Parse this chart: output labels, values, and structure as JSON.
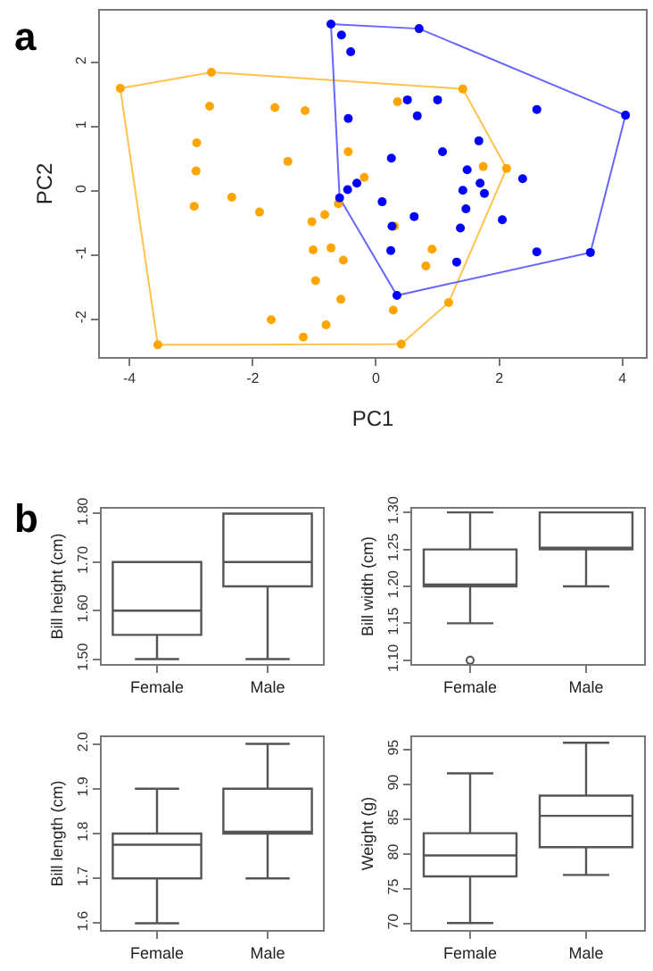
{
  "chart_data": [
    {
      "type": "scatter",
      "xlabel": "PC1",
      "ylabel": "PC2",
      "annotations": [
        "a"
      ],
      "marker": "circle",
      "grid": false,
      "xlim": [
        -4.48,
        4.38
      ],
      "xticks": [
        -4,
        -2,
        0,
        2,
        4
      ],
      "ylim": [
        -2.59,
        2.81
      ],
      "yticks": [
        -2,
        -1,
        0,
        1,
        2
      ],
      "series": [
        {
          "type": "line",
          "marker": "none",
          "line_style": "solid",
          "color": "#ffc34d",
          "x": [
            -4.15,
            -2.67,
            1.41,
            2.12
          ],
          "values": [
            1.6,
            1.85,
            1.59,
            0.35
          ]
        },
        {
          "type": "line",
          "marker": "none",
          "line_style": "solid",
          "color": "#ffc34d",
          "x": [
            -4.15,
            -3.54,
            0.41,
            1.18,
            2.12
          ],
          "values": [
            1.6,
            -2.4,
            -2.39,
            -1.74,
            0.35
          ]
        },
        {
          "type": "line",
          "marker": "none",
          "line_style": "solid",
          "color": "#6666ff",
          "x": [
            -0.73,
            0.7,
            4.05
          ],
          "values": [
            2.6,
            2.53,
            1.18
          ]
        },
        {
          "type": "line",
          "marker": "none",
          "line_style": "solid",
          "color": "#6666ff",
          "x": [
            -0.73,
            -0.59,
            0.34,
            3.48,
            4.05
          ],
          "values": [
            2.6,
            -0.11,
            -1.63,
            -0.96,
            1.18
          ]
        },
        {
          "color": "#ffa500",
          "x": [
            -4.15,
            -2.67,
            -2.7,
            -1.64,
            -1.15,
            -2.91,
            -2.92,
            -1.43,
            -2.34,
            -2.95,
            -1.89,
            -1.04,
            -0.83,
            -1.02,
            -0.98,
            -1.7,
            -1.18,
            -0.81,
            -3.54,
            1.41,
            0.35,
            -0.45,
            -0.19,
            1.74,
            2.12,
            -0.61,
            0.3,
            -0.73,
            -0.53,
            0.91,
            0.81,
            -0.57,
            0.28,
            1.18,
            0.41
          ],
          "values": [
            1.6,
            1.85,
            1.32,
            1.3,
            1.25,
            0.75,
            0.31,
            0.46,
            -0.1,
            -0.24,
            -0.33,
            -0.48,
            -0.37,
            -0.92,
            -1.4,
            -2.01,
            -2.28,
            -2.09,
            -2.4,
            1.59,
            1.39,
            0.61,
            0.21,
            0.38,
            0.35,
            -0.2,
            -0.55,
            -0.89,
            -1.08,
            -0.91,
            -1.17,
            -1.69,
            -1.86,
            -1.74,
            -2.39
          ]
        },
        {
          "color": "#0000ff",
          "x": [
            -0.73,
            0.7,
            -0.56,
            -0.41,
            0.51,
            1.0,
            0.67,
            -0.45,
            2.61,
            4.05,
            1.67,
            0.25,
            1.08,
            1.48,
            2.38,
            -0.31,
            -0.46,
            1.69,
            1.41,
            1.76,
            0.1,
            1.46,
            0.62,
            0.26,
            1.37,
            2.05,
            0.24,
            2.61,
            3.48,
            1.31,
            0.34,
            -0.59
          ],
          "values": [
            2.6,
            2.53,
            2.43,
            2.17,
            1.42,
            1.42,
            1.17,
            1.13,
            1.27,
            1.18,
            0.78,
            0.51,
            0.61,
            0.33,
            0.19,
            0.12,
            0.02,
            0.12,
            0.01,
            -0.04,
            -0.17,
            -0.28,
            -0.4,
            -0.55,
            -0.58,
            -0.45,
            -0.93,
            -0.95,
            -0.96,
            -1.11,
            -1.63,
            -0.11
          ]
        }
      ]
    },
    {
      "type": "box",
      "ylabel": "Bill height (cm)",
      "annotations": [
        "b"
      ],
      "categories": [
        "Female",
        "Male"
      ],
      "ylim": [
        1.49,
        1.81
      ],
      "yticks": [
        {
          "value": 1.5,
          "label": "1.50"
        },
        {
          "value": 1.6,
          "label": "1.60"
        },
        {
          "value": 1.7,
          "label": "1.70"
        },
        {
          "value": 1.8,
          "label": "1.80"
        }
      ],
      "grid": false,
      "boxes": [
        {
          "low": 1.5,
          "q1": 1.55,
          "median": 1.6,
          "q3": 1.7,
          "high": 1.7
        },
        {
          "low": 1.5,
          "q1": 1.65,
          "median": 1.7,
          "q3": 1.8,
          "high": 1.8
        }
      ]
    },
    {
      "type": "box",
      "ylabel": "Bill width (cm)",
      "categories": [
        "Female",
        "Male"
      ],
      "ylim": [
        1.095,
        1.305
      ],
      "yticks": [
        {
          "value": 1.1,
          "label": "1.10"
        },
        1.15,
        {
          "value": 1.2,
          "label": "1.20"
        },
        1.25,
        {
          "value": 1.3,
          "label": "1.30"
        }
      ],
      "grid": false,
      "boxes": [
        {
          "low": 1.15,
          "q1": 1.2,
          "median": 1.2,
          "q3": 1.25,
          "high": 1.3,
          "outliers": [
            1.1
          ]
        },
        {
          "low": 1.2,
          "q1": 1.25,
          "median": 1.25,
          "q3": 1.3,
          "high": 1.3
        }
      ]
    },
    {
      "type": "box",
      "ylabel": "Bill length (cm)",
      "categories": [
        "Female",
        "Male"
      ],
      "ylim": [
        1.585,
        2.015
      ],
      "yticks": [
        1.6,
        1.7,
        1.8,
        1.9,
        {
          "value": 2,
          "label": "2.0"
        }
      ],
      "grid": false,
      "boxes": [
        {
          "low": 1.6,
          "q1": 1.7,
          "median": 1.775,
          "q3": 1.8,
          "high": 1.9
        },
        {
          "low": 1.7,
          "q1": 1.8,
          "median": 1.8,
          "q3": 1.9,
          "high": 2.0
        }
      ]
    },
    {
      "type": "box",
      "ylabel": "Weight (g)",
      "categories": [
        "Female",
        "Male"
      ],
      "ylim": [
        69.1,
        96.8
      ],
      "yticks": [
        70,
        75,
        80,
        85,
        90,
        95
      ],
      "grid": false,
      "boxes": [
        {
          "low": 70.1,
          "q1": 76.8,
          "median": 79.8,
          "q3": 83,
          "high": 91.6
        },
        {
          "low": 77,
          "q1": 81,
          "median": 85.5,
          "q3": 88.4,
          "high": 96
        }
      ]
    }
  ]
}
